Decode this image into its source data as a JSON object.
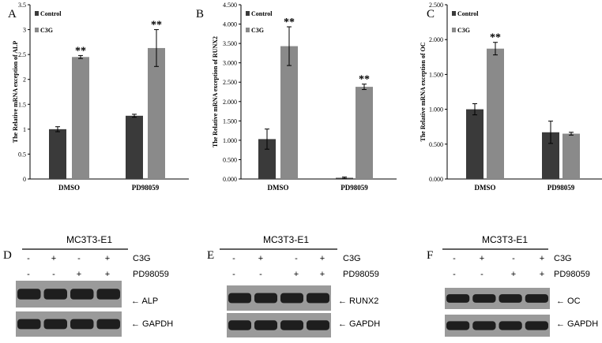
{
  "chart_data": [
    {
      "panel": "A",
      "type": "bar",
      "categories": [
        "DMSO",
        "PD98059"
      ],
      "series": [
        {
          "name": "Control",
          "values": [
            1.0,
            1.27
          ],
          "errors": [
            0.05,
            0.03
          ],
          "color": "#3a3a3a"
        },
        {
          "name": "C3G",
          "values": [
            2.45,
            2.63
          ],
          "errors": [
            0.03,
            0.37
          ],
          "color": "#8a8a8a"
        }
      ],
      "significance": [
        [
          "",
          "**"
        ],
        [
          "",
          "**"
        ]
      ],
      "ylabel": "The Relative mRNA exception of ALP",
      "ylim": [
        0,
        3.5
      ],
      "yticks": [
        "0",
        "0.5",
        "1",
        "1.5",
        "2",
        "2.5",
        "3",
        "3.5"
      ],
      "legend": "top-left"
    },
    {
      "panel": "B",
      "type": "bar",
      "categories": [
        "DMSO",
        "PD98059"
      ],
      "series": [
        {
          "name": "Control",
          "values": [
            1.03,
            0.03
          ],
          "errors": [
            0.26,
            0.02
          ],
          "color": "#3a3a3a"
        },
        {
          "name": "C3G",
          "values": [
            3.43,
            2.38
          ],
          "errors": [
            0.5,
            0.07
          ],
          "color": "#8a8a8a"
        }
      ],
      "significance": [
        [
          "",
          "**"
        ],
        [
          "",
          "**"
        ]
      ],
      "ylabel": "The Relative mRNA exception of RUNX2",
      "ylim": [
        0,
        4.5
      ],
      "yticks": [
        "0.000",
        "0.500",
        "1.000",
        "1.500",
        "2.000",
        "2.500",
        "3.000",
        "3.500",
        "4.000",
        "4.500"
      ],
      "legend": "top-left"
    },
    {
      "panel": "C",
      "type": "bar",
      "categories": [
        "DMSO",
        "PD98059"
      ],
      "series": [
        {
          "name": "Control",
          "values": [
            1.0,
            0.67
          ],
          "errors": [
            0.08,
            0.16
          ],
          "color": "#3a3a3a"
        },
        {
          "name": "C3G",
          "values": [
            1.87,
            0.65
          ],
          "errors": [
            0.09,
            0.02
          ],
          "color": "#8a8a8a"
        }
      ],
      "significance": [
        [
          "",
          "**"
        ],
        [
          "",
          ""
        ]
      ],
      "ylabel": "The Relative mRNA exception of OC",
      "ylim": [
        0,
        2.5
      ],
      "yticks": [
        "0.000",
        "0.500",
        "1.000",
        "1.500",
        "2.000",
        "2.500"
      ],
      "legend": "top-left"
    }
  ],
  "blots": [
    {
      "panel": "D",
      "title": "MC3T3-E1",
      "c3g": [
        "-",
        "+",
        "-",
        "+"
      ],
      "pd": [
        "-",
        "-",
        "+",
        "+"
      ],
      "label_c3g": "C3G",
      "label_pd": "PD98059",
      "band1": "ALP",
      "band2": "GAPDH"
    },
    {
      "panel": "E",
      "title": "MC3T3-E1",
      "c3g": [
        "-",
        "+",
        "-",
        "+"
      ],
      "pd": [
        "-",
        "-",
        "+",
        "+"
      ],
      "label_c3g": "C3G",
      "label_pd": "PD98059",
      "band1": "RUNX2",
      "band2": "GAPDH"
    },
    {
      "panel": "F",
      "title": "MC3T3-E1",
      "c3g": [
        "-",
        "+",
        "-",
        "+"
      ],
      "pd": [
        "-",
        "-",
        "+",
        "+"
      ],
      "label_c3g": "C3G",
      "label_pd": "PD98059",
      "band1": "OC",
      "band2": "GAPDH"
    }
  ]
}
